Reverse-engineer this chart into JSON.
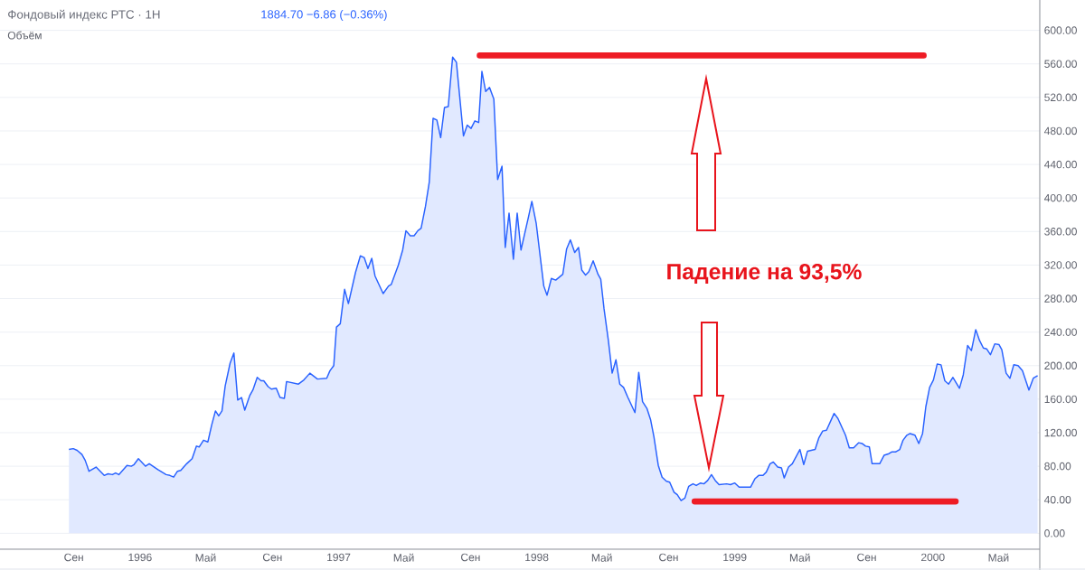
{
  "chart_data": {
    "type": "area",
    "title": "Фондовый индекс РТС · 1Н",
    "annotations": [
      "1884.70 −6.86 (−0.36%)",
      "Объём",
      "Падение на 93,5%"
    ],
    "xlim": [
      "1995-04-18",
      "2000-07-16"
    ],
    "xticks": [
      {
        "value": "1995-09-01",
        "label": "Сен"
      },
      {
        "value": "1996-01-01",
        "label": "1996"
      },
      {
        "value": "1996-05-01",
        "label": "Май"
      },
      {
        "value": "1996-09-01",
        "label": "Сен"
      },
      {
        "value": "1997-01-01",
        "label": "1997"
      },
      {
        "value": "1997-05-01",
        "label": "Май"
      },
      {
        "value": "1997-09-01",
        "label": "Сен"
      },
      {
        "value": "1998-01-01",
        "label": "1998"
      },
      {
        "value": "1998-05-01",
        "label": "Май"
      },
      {
        "value": "1998-09-01",
        "label": "Сен"
      },
      {
        "value": "1999-01-01",
        "label": "1999"
      },
      {
        "value": "1999-05-01",
        "label": "Май"
      },
      {
        "value": "1999-09-01",
        "label": "Сен"
      },
      {
        "value": "2000-01-01",
        "label": "2000"
      },
      {
        "value": "2000-05-01",
        "label": "Май"
      }
    ],
    "ylim": [
      -19,
      633
    ],
    "yticks": [
      {
        "value": 0,
        "label": "0.00"
      },
      {
        "value": 40,
        "label": "40.00"
      },
      {
        "value": 80,
        "label": "80.00"
      },
      {
        "value": 120,
        "label": "120.00"
      },
      {
        "value": 160,
        "label": "160.00"
      },
      {
        "value": 200,
        "label": "200.00"
      },
      {
        "value": 240,
        "label": "240.00"
      },
      {
        "value": 280,
        "label": "280.00"
      },
      {
        "value": 320,
        "label": "320.00"
      },
      {
        "value": 360,
        "label": "360.00"
      },
      {
        "value": 400,
        "label": "400.00"
      },
      {
        "value": 440,
        "label": "440.00"
      },
      {
        "value": 480,
        "label": "480.00"
      },
      {
        "value": 520,
        "label": "520.00"
      },
      {
        "value": 560,
        "label": "560.00"
      },
      {
        "value": 600,
        "label": "600.00"
      }
    ],
    "grid": "y",
    "series": [
      {
        "color": "#2962ff",
        "x": [
          "1995-08-23",
          "1995-08-31",
          "1995-09-07",
          "1995-09-16",
          "1995-09-22",
          "1995-09-29",
          "1995-10-12",
          "1995-10-27",
          "1995-11-03",
          "1995-11-11",
          "1995-11-17",
          "1995-11-23",
          "1995-12-08",
          "1995-12-16",
          "1995-12-21",
          "1995-12-29",
          "1996-01-11",
          "1996-01-18",
          "1996-02-03",
          "1996-02-18",
          "1996-02-25",
          "1996-03-03",
          "1996-03-10",
          "1996-03-16",
          "1996-03-27",
          "1996-04-06",
          "1996-04-14",
          "1996-04-19",
          "1996-04-27",
          "1996-05-05",
          "1996-05-12",
          "1996-05-19",
          "1996-05-25",
          "1996-05-31",
          "1996-06-06",
          "1996-06-15",
          "1996-06-22",
          "1996-06-29",
          "1996-07-06",
          "1996-07-12",
          "1996-07-21",
          "1996-07-27",
          "1996-08-04",
          "1996-08-11",
          "1996-08-16",
          "1996-08-24",
          "1996-08-30",
          "1996-09-08",
          "1996-09-15",
          "1996-09-23",
          "1996-09-27",
          "1996-10-19",
          "1996-10-29",
          "1996-11-09",
          "1996-11-23",
          "1996-12-10",
          "1996-12-16",
          "1996-12-23",
          "1996-12-28",
          "1997-01-04",
          "1997-01-12",
          "1997-01-19",
          "1997-02-01",
          "1997-02-10",
          "1997-02-17",
          "1997-02-24",
          "1997-03-03",
          "1997-03-09",
          "1997-03-24",
          "1997-04-03",
          "1997-04-08",
          "1997-04-21",
          "1997-04-29",
          "1997-05-05",
          "1997-05-13",
          "1997-05-20",
          "1997-05-27",
          "1997-06-02",
          "1997-06-10",
          "1997-06-17",
          "1997-06-24",
          "1997-07-01",
          "1997-07-08",
          "1997-07-15",
          "1997-07-22",
          "1997-07-30",
          "1997-08-06",
          "1997-08-19",
          "1997-08-26",
          "1997-09-02",
          "1997-09-09",
          "1997-09-16",
          "1997-09-22",
          "1997-09-29",
          "1997-10-06",
          "1997-10-14",
          "1997-10-21",
          "1997-10-29",
          "1997-11-04",
          "1997-11-11",
          "1997-11-19",
          "1997-11-26",
          "1997-12-03",
          "1997-12-17",
          "1997-12-23",
          "1997-12-31",
          "1998-01-14",
          "1998-01-20",
          "1998-01-28",
          "1998-02-05",
          "1998-02-18",
          "1998-02-25",
          "1998-03-04",
          "1998-03-12",
          "1998-03-19",
          "1998-03-25",
          "1998-04-01",
          "1998-04-07",
          "1998-04-15",
          "1998-04-24",
          "1998-04-29",
          "1998-05-05",
          "1998-05-13",
          "1998-05-20",
          "1998-05-27",
          "1998-06-03",
          "1998-06-10",
          "1998-06-18",
          "1998-07-01",
          "1998-07-08",
          "1998-07-15",
          "1998-07-23",
          "1998-07-30",
          "1998-08-05",
          "1998-08-13",
          "1998-08-20",
          "1998-08-28",
          "1998-09-03",
          "1998-09-11",
          "1998-09-17",
          "1998-09-24",
          "1998-10-01",
          "1998-10-08",
          "1998-10-16",
          "1998-10-22",
          "1998-10-30",
          "1998-11-05",
          "1998-11-12",
          "1998-11-19",
          "1998-11-26",
          "1998-12-03",
          "1998-12-17",
          "1998-12-24",
          "1999-01-01",
          "1999-01-09",
          "1999-01-30",
          "1999-02-07",
          "1999-02-14",
          "1999-02-22",
          "1999-02-28",
          "1999-03-07",
          "1999-03-13",
          "1999-03-21",
          "1999-03-28",
          "1999-04-02",
          "1999-04-10",
          "1999-04-17",
          "1999-05-01",
          "1999-05-08",
          "1999-05-15",
          "1999-05-29",
          "1999-06-05",
          "1999-06-12",
          "1999-06-19",
          "1999-07-03",
          "1999-07-10",
          "1999-07-24",
          "1999-07-31",
          "1999-08-08",
          "1999-08-17",
          "1999-08-24",
          "1999-08-30",
          "1999-09-06",
          "1999-09-11",
          "1999-09-25",
          "1999-10-03",
          "1999-10-12",
          "1999-10-17",
          "1999-10-24",
          "1999-11-01",
          "1999-11-07",
          "1999-11-14",
          "1999-11-20",
          "1999-11-29",
          "1999-12-06",
          "1999-12-13",
          "1999-12-19",
          "1999-12-26",
          "2000-01-02",
          "2000-01-09",
          "2000-01-16",
          "2000-01-23",
          "2000-01-30",
          "2000-02-07",
          "2000-02-19",
          "2000-02-26",
          "2000-03-05",
          "2000-03-12",
          "2000-03-20",
          "2000-03-27",
          "2000-04-03",
          "2000-04-09",
          "2000-04-16",
          "2000-04-24",
          "2000-05-02",
          "2000-05-07",
          "2000-05-15",
          "2000-05-22",
          "2000-05-29",
          "2000-06-06",
          "2000-06-14",
          "2000-06-26",
          "2000-07-04",
          "2000-07-12"
        ],
        "values": [
          100,
          101,
          99,
          94,
          87,
          74,
          79,
          69,
          71,
          70,
          72,
          70,
          81,
          80,
          82,
          89,
          80,
          83,
          76,
          70,
          69,
          67,
          74,
          75,
          83,
          89,
          104,
          103,
          111,
          109,
          129,
          146,
          140,
          146,
          176,
          203,
          215,
          159,
          162,
          147,
          164,
          171,
          186,
          182,
          182,
          175,
          172,
          173,
          162,
          161,
          181,
          178,
          183,
          191,
          184,
          185,
          194,
          200,
          246,
          250,
          291,
          274,
          311,
          331,
          329,
          316,
          328,
          307,
          286,
          295,
          297,
          320,
          338,
          361,
          355,
          355,
          361,
          364,
          390,
          419,
          495,
          493,
          472,
          508,
          509,
          568,
          562,
          474,
          487,
          483,
          492,
          490,
          551,
          527,
          532,
          518,
          422,
          438,
          341,
          382,
          327,
          382,
          338,
          378,
          396,
          370,
          295,
          284,
          304,
          302,
          309,
          339,
          350,
          335,
          341,
          314,
          308,
          312,
          325,
          309,
          303,
          268,
          230,
          191,
          207,
          178,
          174,
          162,
          144,
          192,
          157,
          149,
          135,
          115,
          81,
          67,
          62,
          61,
          49,
          46,
          39,
          42,
          56,
          59,
          57,
          60,
          59,
          63,
          70,
          63,
          58,
          59,
          58,
          60,
          55,
          55,
          65,
          69,
          69,
          73,
          83,
          85,
          79,
          78,
          66,
          79,
          83,
          100,
          82,
          98,
          100,
          114,
          122,
          123,
          143,
          137,
          117,
          102,
          102,
          108,
          107,
          104,
          103,
          83,
          83,
          93,
          95,
          97,
          97,
          100,
          111,
          117,
          119,
          117,
          107,
          119,
          151,
          174,
          183,
          202,
          201,
          182,
          178,
          186,
          173,
          189,
          224,
          218,
          243,
          230,
          221,
          220,
          213,
          226,
          225,
          219,
          191,
          185,
          201,
          200,
          194,
          171,
          185,
          188
        ]
      },
      {
        "type": "line",
        "color": "#ee1c25",
        "x": [
          "1997-09-18",
          "1999-12-15"
        ],
        "values": [
          570,
          570
        ]
      },
      {
        "type": "line",
        "color": "#ee1c25",
        "x": [
          "1998-10-19",
          "2000-02-12"
        ],
        "values": [
          38,
          38
        ]
      }
    ]
  }
}
